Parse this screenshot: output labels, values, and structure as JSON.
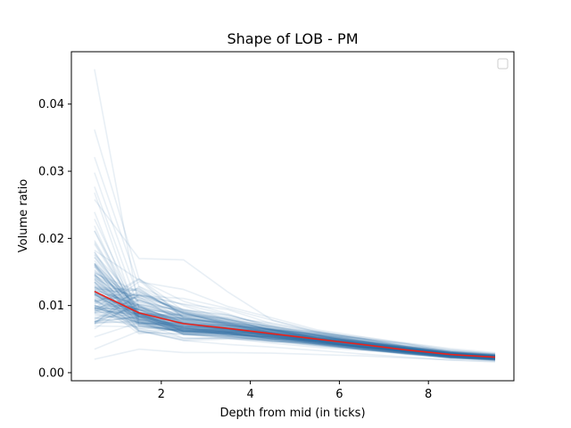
{
  "chart_data": {
    "type": "line",
    "title": "Shape of LOB - PM",
    "xlabel": "Depth from mid (in ticks)",
    "ylabel": "Volume ratio",
    "xlim": [
      -0.02,
      9.92
    ],
    "ylim": [
      -0.0012,
      0.0478
    ],
    "x_ticks": [
      2,
      4,
      6,
      8
    ],
    "x_tick_labels": [
      "2",
      "4",
      "6",
      "8"
    ],
    "y_ticks": [
      0.0,
      0.01,
      0.02,
      0.03,
      0.04
    ],
    "y_tick_labels": [
      "0.00",
      "0.01",
      "0.02",
      "0.03",
      "0.04"
    ],
    "grid": false,
    "legend": {
      "location": "top-right",
      "entries": []
    },
    "x": [
      0.5,
      1.5,
      2.5,
      3.5,
      4.5,
      5.5,
      6.5,
      7.5,
      8.5,
      9.5
    ],
    "mean_series": {
      "color": "#e8231c",
      "values": [
        0.0121,
        0.0089,
        0.0073,
        0.0066,
        0.0058,
        0.005,
        0.0042,
        0.0034,
        0.0027,
        0.0023
      ]
    },
    "sample_series_color": "#2c6fa8",
    "sample_series_count": 150,
    "sample_series": [
      [
        0.0452,
        0.0095,
        0.007,
        0.0062,
        0.0055,
        0.0046,
        0.0039,
        0.0031,
        0.0024,
        0.002
      ],
      [
        0.0362,
        0.014,
        0.0082,
        0.007,
        0.006,
        0.005,
        0.0041,
        0.0033,
        0.0026,
        0.0022
      ],
      [
        0.0321,
        0.0128,
        0.009,
        0.0072,
        0.0061,
        0.0052,
        0.0043,
        0.0035,
        0.0028,
        0.0024
      ],
      [
        0.0298,
        0.011,
        0.0078,
        0.0068,
        0.0058,
        0.0049,
        0.0041,
        0.0033,
        0.0026,
        0.0023
      ],
      [
        0.0258,
        0.017,
        0.0168,
        0.012,
        0.0078,
        0.006,
        0.0047,
        0.0037,
        0.0029,
        0.0025
      ],
      [
        0.0035,
        0.0062,
        0.0048,
        0.0042,
        0.0038,
        0.0033,
        0.0028,
        0.0023,
        0.0019,
        0.0016
      ],
      [
        0.002,
        0.0035,
        0.003,
        0.003,
        0.0029,
        0.0027,
        0.0025,
        0.0022,
        0.0019,
        0.0017
      ]
    ]
  }
}
